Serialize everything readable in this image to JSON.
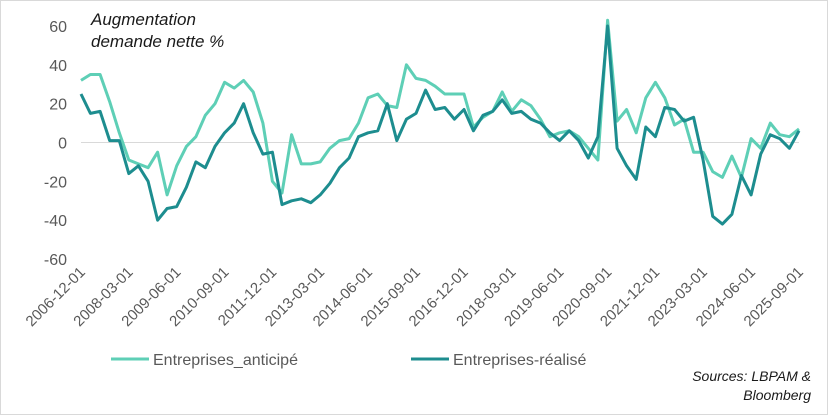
{
  "chart_data": {
    "type": "line",
    "title_lines": [
      "Augmentation",
      "demande nette %"
    ],
    "source_lines": [
      "Sources: LBPAM &",
      "Bloomberg"
    ],
    "ylim": [
      -60,
      60
    ],
    "y_ticks": [
      -60,
      -40,
      -20,
      0,
      20,
      40,
      60
    ],
    "x_range": [
      "2006-12-01",
      "2025-09-01"
    ],
    "x_tick_labels": [
      "2006-12-01",
      "2008-03-01",
      "2009-06-01",
      "2010-09-01",
      "2011-12-01",
      "2013-03-01",
      "2014-06-01",
      "2015-09-01",
      "2016-12-01",
      "2018-03-01",
      "2019-06-01",
      "2020-09-01",
      "2021-12-01",
      "2023-03-01",
      "2024-06-01",
      "2025-09-01"
    ],
    "grid": {
      "horizontal": false,
      "vertical": false,
      "zero_line": true
    },
    "legend_position": "bottom",
    "series": [
      {
        "name": "Entreprises_anticipé",
        "color": "#5ecfb6",
        "points": [
          [
            "2006-12-01",
            32
          ],
          [
            "2007-03-01",
            35
          ],
          [
            "2007-06-01",
            35
          ],
          [
            "2007-09-01",
            21
          ],
          [
            "2007-12-01",
            5
          ],
          [
            "2008-03-01",
            -9
          ],
          [
            "2008-06-01",
            -11
          ],
          [
            "2008-09-01",
            -13
          ],
          [
            "2008-12-01",
            -5
          ],
          [
            "2009-03-01",
            -27
          ],
          [
            "2009-06-01",
            -12
          ],
          [
            "2009-09-01",
            -2
          ],
          [
            "2009-12-01",
            3
          ],
          [
            "2010-03-01",
            14
          ],
          [
            "2010-06-01",
            20
          ],
          [
            "2010-09-01",
            31
          ],
          [
            "2010-12-01",
            28
          ],
          [
            "2011-03-01",
            32
          ],
          [
            "2011-06-01",
            26
          ],
          [
            "2011-09-01",
            10
          ],
          [
            "2011-12-01",
            -20
          ],
          [
            "2012-03-01",
            -26
          ],
          [
            "2012-06-01",
            4
          ],
          [
            "2012-09-01",
            -11
          ],
          [
            "2012-12-01",
            -11
          ],
          [
            "2013-03-01",
            -10
          ],
          [
            "2013-06-01",
            -3
          ],
          [
            "2013-09-01",
            1
          ],
          [
            "2013-12-01",
            2
          ],
          [
            "2014-03-01",
            10
          ],
          [
            "2014-06-01",
            23
          ],
          [
            "2014-09-01",
            25
          ],
          [
            "2014-12-01",
            19
          ],
          [
            "2015-03-01",
            18
          ],
          [
            "2015-06-01",
            40
          ],
          [
            "2015-09-01",
            33
          ],
          [
            "2015-12-01",
            32
          ],
          [
            "2016-03-01",
            29
          ],
          [
            "2016-06-01",
            25
          ],
          [
            "2016-09-01",
            25
          ],
          [
            "2016-12-01",
            25
          ],
          [
            "2017-03-01",
            8
          ],
          [
            "2017-06-01",
            13
          ],
          [
            "2017-09-01",
            16
          ],
          [
            "2017-12-01",
            26
          ],
          [
            "2018-03-01",
            16
          ],
          [
            "2018-06-01",
            22
          ],
          [
            "2018-09-01",
            19
          ],
          [
            "2018-12-01",
            12
          ],
          [
            "2019-03-01",
            3
          ],
          [
            "2019-06-01",
            5
          ],
          [
            "2019-09-01",
            6
          ],
          [
            "2019-12-01",
            3
          ],
          [
            "2020-03-01",
            -3
          ],
          [
            "2020-06-01",
            -9
          ],
          [
            "2020-09-01",
            63
          ],
          [
            "2020-12-01",
            11
          ],
          [
            "2021-03-01",
            17
          ],
          [
            "2021-06-01",
            5
          ],
          [
            "2021-09-01",
            23
          ],
          [
            "2021-12-01",
            31
          ],
          [
            "2022-03-01",
            23
          ],
          [
            "2022-06-01",
            9
          ],
          [
            "2022-09-01",
            12
          ],
          [
            "2022-12-01",
            -5
          ],
          [
            "2023-03-01",
            -5
          ],
          [
            "2023-06-01",
            -15
          ],
          [
            "2023-09-01",
            -18
          ],
          [
            "2023-12-01",
            -7
          ],
          [
            "2024-03-01",
            -18
          ],
          [
            "2024-06-01",
            2
          ],
          [
            "2024-09-01",
            -3
          ],
          [
            "2024-12-01",
            10
          ],
          [
            "2025-03-01",
            4
          ],
          [
            "2025-06-01",
            3
          ],
          [
            "2025-09-01",
            7
          ]
        ]
      },
      {
        "name": "Entreprises-réalisé",
        "color": "#1d8d8f",
        "points": [
          [
            "2006-12-01",
            25
          ],
          [
            "2007-03-01",
            15
          ],
          [
            "2007-06-01",
            16
          ],
          [
            "2007-09-01",
            1
          ],
          [
            "2007-12-01",
            1
          ],
          [
            "2008-03-01",
            -16
          ],
          [
            "2008-06-01",
            -12
          ],
          [
            "2008-09-01",
            -20
          ],
          [
            "2008-12-01",
            -40
          ],
          [
            "2009-03-01",
            -34
          ],
          [
            "2009-06-01",
            -33
          ],
          [
            "2009-09-01",
            -23
          ],
          [
            "2009-12-01",
            -10
          ],
          [
            "2010-03-01",
            -13
          ],
          [
            "2010-06-01",
            -2
          ],
          [
            "2010-09-01",
            5
          ],
          [
            "2010-12-01",
            10
          ],
          [
            "2011-03-01",
            20
          ],
          [
            "2011-06-01",
            5
          ],
          [
            "2011-09-01",
            -6
          ],
          [
            "2011-12-01",
            -5
          ],
          [
            "2012-03-01",
            -32
          ],
          [
            "2012-06-01",
            -30
          ],
          [
            "2012-09-01",
            -29
          ],
          [
            "2012-12-01",
            -31
          ],
          [
            "2013-03-01",
            -27
          ],
          [
            "2013-06-01",
            -21
          ],
          [
            "2013-09-01",
            -13
          ],
          [
            "2013-12-01",
            -8
          ],
          [
            "2014-03-01",
            3
          ],
          [
            "2014-06-01",
            5
          ],
          [
            "2014-09-01",
            6
          ],
          [
            "2014-12-01",
            20
          ],
          [
            "2015-03-01",
            1
          ],
          [
            "2015-06-01",
            12
          ],
          [
            "2015-09-01",
            15
          ],
          [
            "2015-12-01",
            27
          ],
          [
            "2016-03-01",
            17
          ],
          [
            "2016-06-01",
            18
          ],
          [
            "2016-09-01",
            12
          ],
          [
            "2016-12-01",
            17
          ],
          [
            "2017-03-01",
            6
          ],
          [
            "2017-06-01",
            14
          ],
          [
            "2017-09-01",
            16
          ],
          [
            "2017-12-01",
            22
          ],
          [
            "2018-03-01",
            15
          ],
          [
            "2018-06-01",
            16
          ],
          [
            "2018-09-01",
            12
          ],
          [
            "2018-12-01",
            10
          ],
          [
            "2019-03-01",
            5
          ],
          [
            "2019-06-01",
            1
          ],
          [
            "2019-09-01",
            6
          ],
          [
            "2019-12-01",
            1
          ],
          [
            "2020-03-01",
            -8
          ],
          [
            "2020-06-01",
            3
          ],
          [
            "2020-09-01",
            60
          ],
          [
            "2020-12-01",
            -3
          ],
          [
            "2021-03-01",
            -12
          ],
          [
            "2021-06-01",
            -19
          ],
          [
            "2021-09-01",
            8
          ],
          [
            "2021-12-01",
            3
          ],
          [
            "2022-03-01",
            18
          ],
          [
            "2022-06-01",
            17
          ],
          [
            "2022-09-01",
            11
          ],
          [
            "2022-12-01",
            13
          ],
          [
            "2023-03-01",
            -9
          ],
          [
            "2023-06-01",
            -38
          ],
          [
            "2023-09-01",
            -42
          ],
          [
            "2023-12-01",
            -37
          ],
          [
            "2024-03-01",
            -17
          ],
          [
            "2024-06-01",
            -27
          ],
          [
            "2024-09-01",
            -6
          ],
          [
            "2024-12-01",
            4
          ],
          [
            "2025-03-01",
            2
          ],
          [
            "2025-06-01",
            -3
          ],
          [
            "2025-09-01",
            6
          ]
        ]
      }
    ]
  }
}
